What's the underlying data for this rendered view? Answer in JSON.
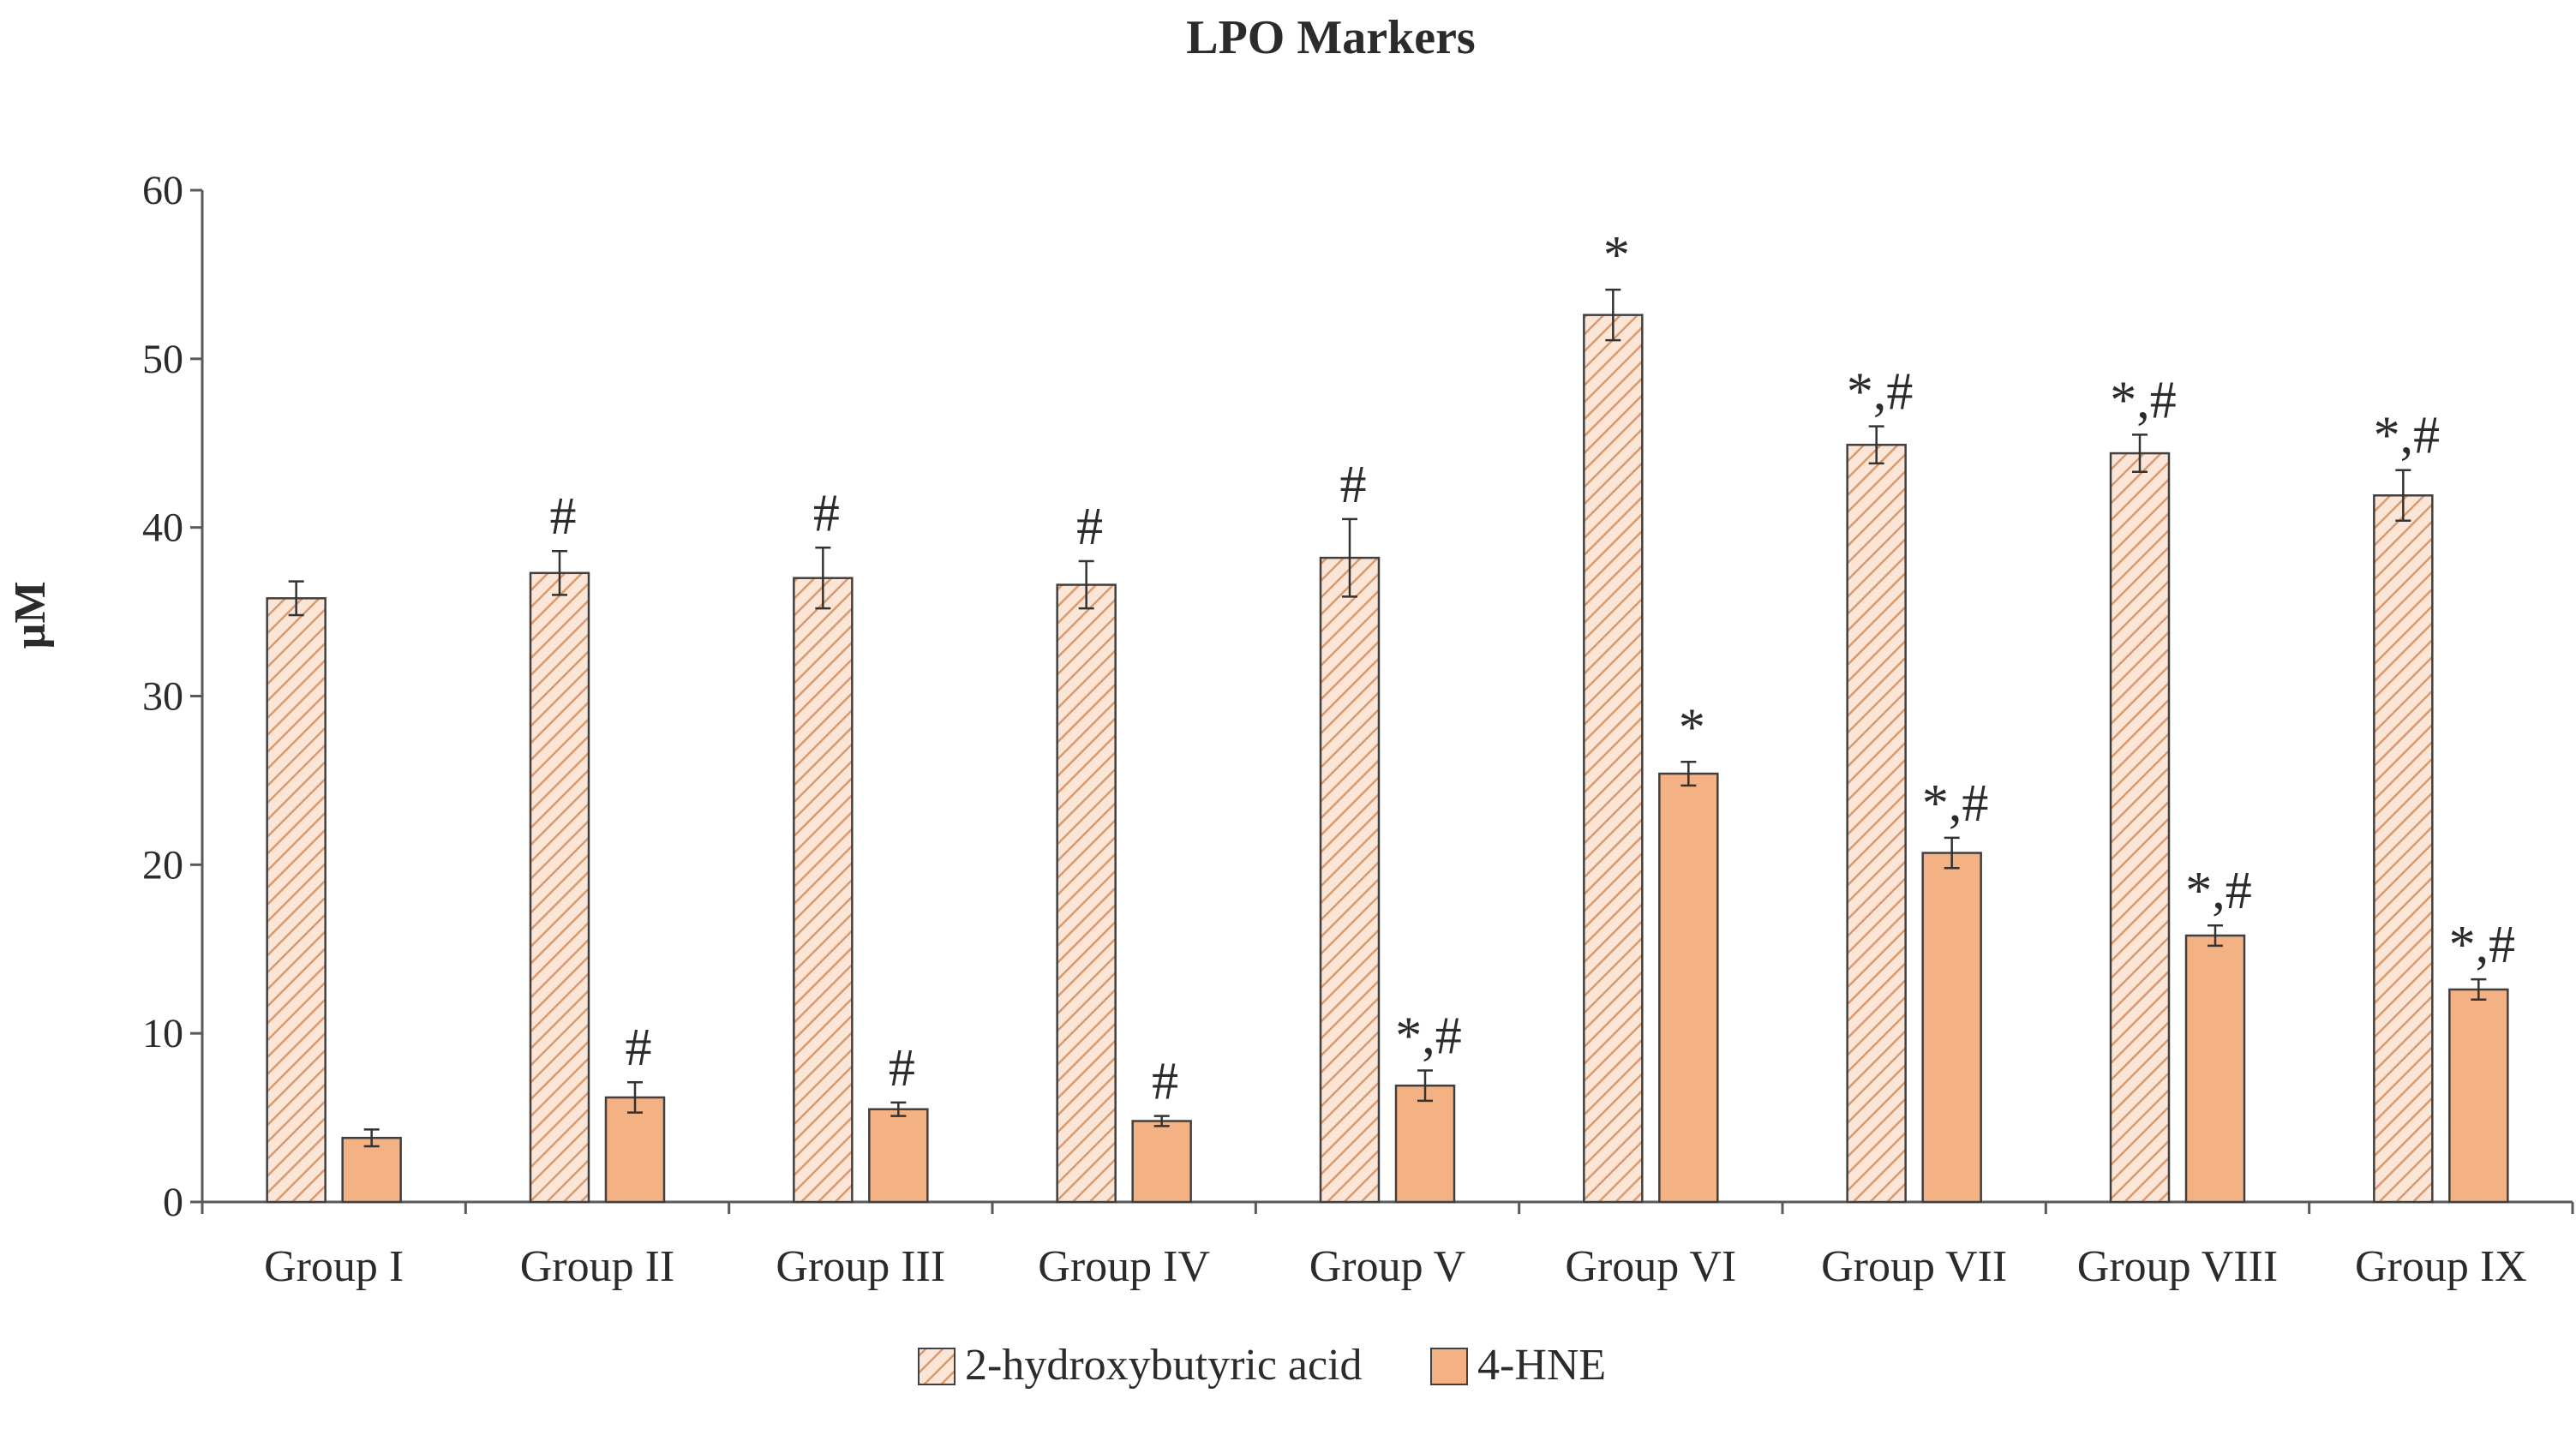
{
  "chart_data": {
    "type": "bar",
    "title": "LPO Markers",
    "xlabel": "",
    "ylabel": "µM",
    "ylim": [
      0,
      60
    ],
    "yticks": [
      0,
      10,
      20,
      30,
      40,
      50,
      60
    ],
    "grid": false,
    "legend_position": "bottom-center",
    "categories": [
      "Group I",
      "Group II",
      "Group III",
      "Group IV",
      "Group V",
      "Group VI",
      "Group VII",
      "Group VIII",
      "Group IX"
    ],
    "series": [
      {
        "name": "2-hydroxybutyric acid",
        "pattern": "hatched",
        "color": "#f4b183",
        "values": [
          35.8,
          37.3,
          37.0,
          36.6,
          38.2,
          52.6,
          44.9,
          44.4,
          41.9
        ],
        "errors": [
          1.0,
          1.3,
          1.8,
          1.4,
          2.3,
          1.5,
          1.1,
          1.1,
          1.5
        ],
        "annotations": [
          "",
          "#",
          "#",
          "#",
          "#",
          "*",
          "*,#",
          "*,#",
          "*,#"
        ]
      },
      {
        "name": "4-HNE",
        "pattern": "solid",
        "color": "#f4b183",
        "values": [
          3.8,
          6.2,
          5.5,
          4.8,
          6.9,
          25.4,
          20.7,
          15.8,
          12.6
        ],
        "errors": [
          0.5,
          0.9,
          0.4,
          0.3,
          0.9,
          0.7,
          0.9,
          0.6,
          0.6
        ],
        "annotations": [
          "",
          "#",
          "#",
          "#",
          "*,#",
          "*",
          "*,#",
          "*,#",
          "*,#"
        ]
      }
    ]
  },
  "colors": {
    "bar_fill": "#f4b183",
    "hatch_bg": "#fbe5d6",
    "hatch_line": "#d89a6e",
    "outline": "#404040",
    "axis": "#595959"
  }
}
